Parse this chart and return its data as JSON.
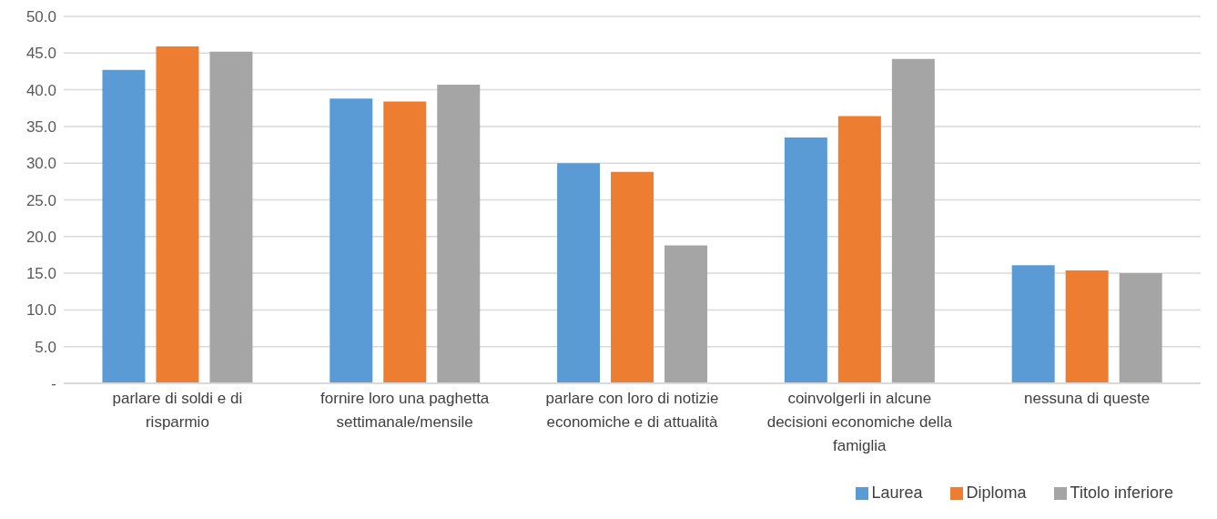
{
  "chart_data": {
    "type": "bar",
    "categories": [
      "parlare di soldi e di risparmio",
      "fornire loro una paghetta settimanale/mensile",
      "parlare con loro di notizie economiche e di attualità",
      "coinvolgerli in alcune decisioni economiche della famiglia",
      "nessuna di queste"
    ],
    "series": [
      {
        "name": "Laurea",
        "color": "#5b9bd5",
        "values": [
          42.7,
          38.8,
          30.0,
          33.5,
          16.1
        ]
      },
      {
        "name": "Diploma",
        "color": "#ed7d31",
        "values": [
          45.9,
          38.4,
          28.8,
          36.4,
          15.4
        ]
      },
      {
        "name": "Titolo inferiore",
        "color": "#a5a5a5",
        "values": [
          45.2,
          40.7,
          18.8,
          44.2,
          15.0
        ]
      }
    ],
    "ylim": [
      0,
      50
    ],
    "yticks": [
      {
        "value": 0,
        "label": "-"
      },
      {
        "value": 5,
        "label": "5.0"
      },
      {
        "value": 10,
        "label": "10.0"
      },
      {
        "value": 15,
        "label": "15.0"
      },
      {
        "value": 20,
        "label": "20.0"
      },
      {
        "value": 25,
        "label": "25.0"
      },
      {
        "value": 30,
        "label": "30.0"
      },
      {
        "value": 35,
        "label": "35.0"
      },
      {
        "value": 40,
        "label": "40.0"
      },
      {
        "value": 45,
        "label": "45.0"
      },
      {
        "value": 50,
        "label": "50.0"
      }
    ],
    "grid": "y",
    "legend": "bottom right"
  }
}
